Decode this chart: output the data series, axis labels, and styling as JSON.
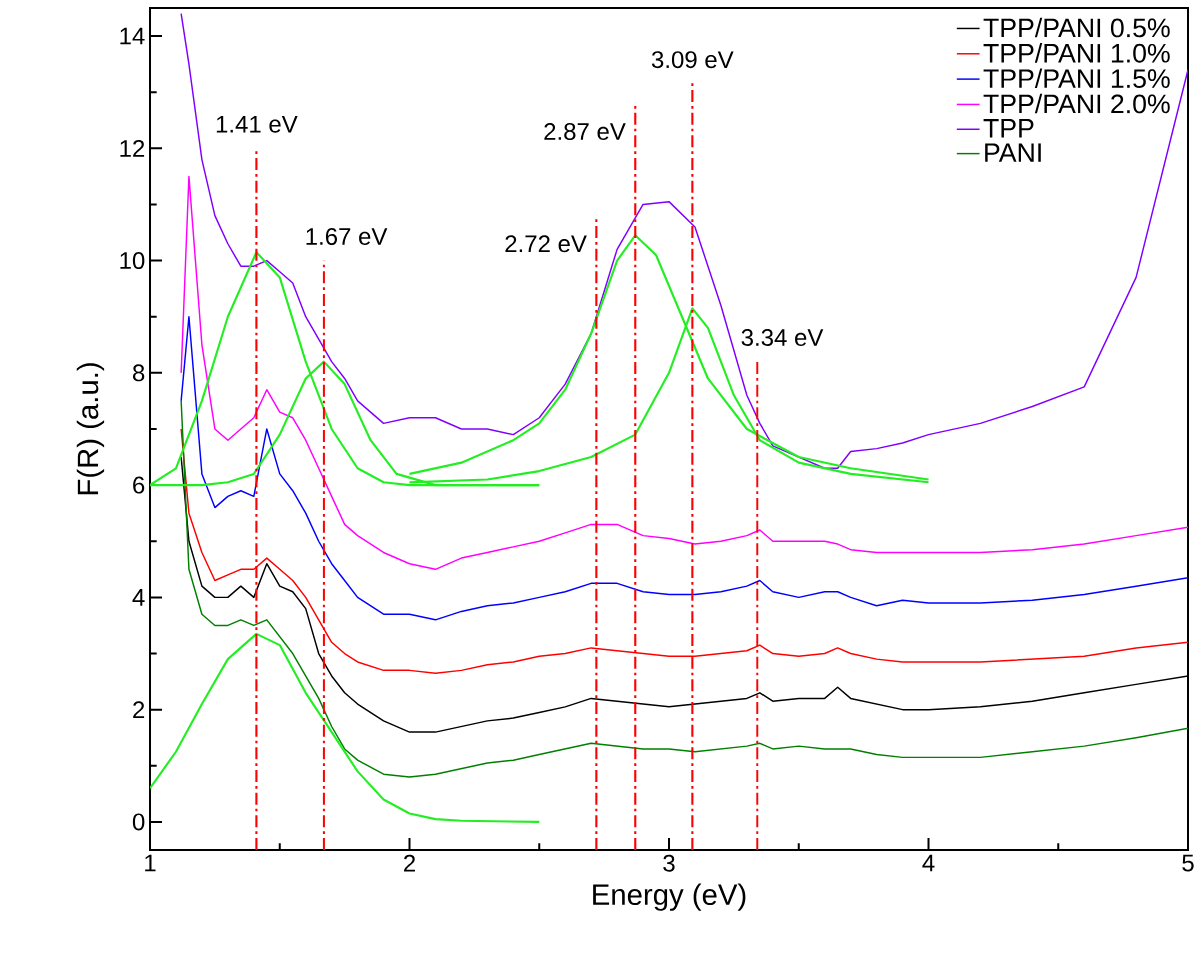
{
  "chart_data": {
    "type": "line",
    "xlabel": "Energy (eV)",
    "ylabel": "F(R) (a.u.)",
    "xlim": [
      1,
      5
    ],
    "ylim": [
      -0.5,
      14.5
    ],
    "xticks": [
      1,
      2,
      3,
      4,
      5
    ],
    "yticks": [
      0,
      2,
      4,
      6,
      8,
      10,
      12,
      14
    ],
    "legend": "top right",
    "x": [
      1.12,
      1.15,
      1.2,
      1.25,
      1.3,
      1.35,
      1.4,
      1.45,
      1.5,
      1.55,
      1.6,
      1.65,
      1.7,
      1.75,
      1.8,
      1.9,
      2.0,
      2.1,
      2.2,
      2.3,
      2.4,
      2.5,
      2.6,
      2.7,
      2.8,
      2.9,
      3.0,
      3.1,
      3.2,
      3.3,
      3.35,
      3.4,
      3.5,
      3.6,
      3.65,
      3.7,
      3.8,
      3.9,
      4.0,
      4.2,
      4.4,
      4.6,
      4.8,
      5.0
    ],
    "series": [
      {
        "name": "TPP/PANI 0.5%",
        "color": "#000000",
        "values": [
          6.5,
          5.0,
          4.2,
          4.0,
          4.0,
          4.2,
          4.0,
          4.6,
          4.2,
          4.1,
          3.8,
          3.0,
          2.6,
          2.3,
          2.1,
          1.8,
          1.6,
          1.6,
          1.7,
          1.8,
          1.85,
          1.95,
          2.05,
          2.2,
          2.15,
          2.1,
          2.05,
          2.1,
          2.15,
          2.2,
          2.3,
          2.15,
          2.2,
          2.2,
          2.4,
          2.2,
          2.1,
          2.0,
          2.0,
          2.05,
          2.15,
          2.3,
          2.45,
          2.6
        ]
      },
      {
        "name": "TPP/PANI 1.0%",
        "color": "#ff0000",
        "values": [
          7.0,
          5.5,
          4.8,
          4.3,
          4.4,
          4.5,
          4.5,
          4.7,
          4.5,
          4.3,
          4.0,
          3.6,
          3.2,
          3.0,
          2.85,
          2.7,
          2.7,
          2.65,
          2.7,
          2.8,
          2.85,
          2.95,
          3.0,
          3.1,
          3.05,
          3.0,
          2.95,
          2.95,
          3.0,
          3.05,
          3.15,
          3.0,
          2.95,
          3.0,
          3.1,
          3.0,
          2.9,
          2.85,
          2.85,
          2.85,
          2.9,
          2.95,
          3.1,
          3.2
        ]
      },
      {
        "name": "TPP/PANI 1.5%",
        "color": "#0000ff",
        "values": [
          7.5,
          9.0,
          6.2,
          5.6,
          5.8,
          5.9,
          5.8,
          7.0,
          6.2,
          5.9,
          5.5,
          5.0,
          4.6,
          4.3,
          4.0,
          3.7,
          3.7,
          3.6,
          3.75,
          3.85,
          3.9,
          4.0,
          4.1,
          4.25,
          4.25,
          4.1,
          4.05,
          4.05,
          4.1,
          4.2,
          4.3,
          4.1,
          4.0,
          4.1,
          4.1,
          4.0,
          3.85,
          3.95,
          3.9,
          3.9,
          3.95,
          4.05,
          4.2,
          4.35
        ]
      },
      {
        "name": "TPP/PANI 2.0%",
        "color": "#ff00ff",
        "values": [
          8.0,
          11.5,
          8.5,
          7.0,
          6.8,
          7.0,
          7.2,
          7.7,
          7.3,
          7.2,
          6.8,
          6.3,
          5.8,
          5.3,
          5.1,
          4.8,
          4.6,
          4.5,
          4.7,
          4.8,
          4.9,
          5.0,
          5.15,
          5.3,
          5.3,
          5.1,
          5.05,
          4.95,
          5.0,
          5.1,
          5.2,
          5.0,
          5.0,
          5.0,
          4.95,
          4.85,
          4.8,
          4.8,
          4.8,
          4.8,
          4.85,
          4.95,
          5.1,
          5.25
        ]
      },
      {
        "name": "TPP",
        "color": "#8000ff",
        "values": [
          14.4,
          13.5,
          11.8,
          10.8,
          10.3,
          9.9,
          9.9,
          10.0,
          9.8,
          9.6,
          9.0,
          8.6,
          8.2,
          7.9,
          7.5,
          7.1,
          7.2,
          7.2,
          7.0,
          7.0,
          6.9,
          7.2,
          7.8,
          8.7,
          10.2,
          11.0,
          11.05,
          10.6,
          9.2,
          7.6,
          7.1,
          6.7,
          6.5,
          6.3,
          6.3,
          6.6,
          6.65,
          6.75,
          6.9,
          7.1,
          7.4,
          7.75,
          9.7,
          13.4
        ]
      },
      {
        "name": "PANI",
        "color": "#008000",
        "values": [
          7.5,
          4.5,
          3.7,
          3.5,
          3.5,
          3.6,
          3.5,
          3.6,
          3.3,
          3.0,
          2.6,
          2.2,
          1.7,
          1.3,
          1.1,
          0.85,
          0.8,
          0.85,
          0.95,
          1.05,
          1.1,
          1.2,
          1.3,
          1.4,
          1.35,
          1.3,
          1.3,
          1.25,
          1.3,
          1.35,
          1.4,
          1.3,
          1.35,
          1.3,
          1.3,
          1.3,
          1.2,
          1.15,
          1.15,
          1.15,
          1.25,
          1.35,
          1.5,
          1.67
        ]
      },
      {
        "color": "#22ee22",
        "x": [
          1.0,
          1.1,
          1.2,
          1.3,
          1.41,
          1.5,
          1.6,
          1.7,
          1.8,
          1.9,
          2.0,
          2.1,
          2.2,
          2.5
        ],
        "values": [
          0.6,
          1.25,
          2.1,
          2.9,
          3.35,
          3.15,
          2.3,
          1.6,
          0.9,
          0.4,
          0.15,
          0.05,
          0.02,
          0.0
        ]
      },
      {
        "color": "#22ee22",
        "x": [
          1.0,
          1.1,
          1.2,
          1.3,
          1.41,
          1.5,
          1.6,
          1.7,
          1.8,
          1.9,
          2.0,
          2.5
        ],
        "values": [
          6.0,
          6.3,
          7.5,
          9.0,
          10.15,
          9.7,
          8.2,
          7.0,
          6.3,
          6.05,
          6.0,
          6.0
        ]
      },
      {
        "color": "#22ee22",
        "x": [
          1.0,
          1.2,
          1.3,
          1.4,
          1.5,
          1.6,
          1.67,
          1.75,
          1.85,
          1.95,
          2.1,
          2.5
        ],
        "values": [
          6.0,
          6.0,
          6.05,
          6.2,
          6.9,
          7.9,
          8.2,
          7.8,
          6.8,
          6.2,
          6.0,
          6.0
        ]
      },
      {
        "color": "#22ee22",
        "x": [
          2.0,
          2.2,
          2.4,
          2.5,
          2.6,
          2.7,
          2.8,
          2.87,
          2.95,
          3.05,
          3.15,
          3.3,
          3.5,
          3.7,
          4.0
        ],
        "values": [
          6.2,
          6.4,
          6.8,
          7.1,
          7.7,
          8.7,
          10.0,
          10.45,
          10.1,
          9.0,
          7.9,
          7.0,
          6.5,
          6.3,
          6.1
        ]
      },
      {
        "color": "#22ee22",
        "x": [
          2.0,
          2.3,
          2.5,
          2.7,
          2.87,
          3.0,
          3.09,
          3.15,
          3.25,
          3.35,
          3.5,
          3.7,
          4.0
        ],
        "values": [
          6.05,
          6.1,
          6.25,
          6.5,
          6.9,
          8.0,
          9.15,
          8.8,
          7.6,
          6.8,
          6.4,
          6.2,
          6.05
        ]
      }
    ],
    "ref_lines": [
      {
        "axis": "x",
        "value": 1.41,
        "label": "1.41 eV",
        "color": "#ff0000",
        "line_style": "dashdot"
      },
      {
        "axis": "x",
        "value": 1.67,
        "label": "1.67 eV",
        "color": "#ff0000",
        "line_style": "dashdot"
      },
      {
        "axis": "x",
        "value": 2.72,
        "label": "2.72 eV",
        "color": "#ff0000",
        "line_style": "dashdot"
      },
      {
        "axis": "x",
        "value": 2.87,
        "label": "2.87 eV",
        "color": "#ff0000",
        "line_style": "dashdot"
      },
      {
        "axis": "x",
        "value": 3.09,
        "label": "3.09 eV",
        "color": "#ff0000",
        "line_style": "dashdot"
      },
      {
        "axis": "x",
        "value": 3.34,
        "label": "3.34 eV",
        "color": "#ff0000",
        "line_style": "dashdot"
      }
    ]
  }
}
